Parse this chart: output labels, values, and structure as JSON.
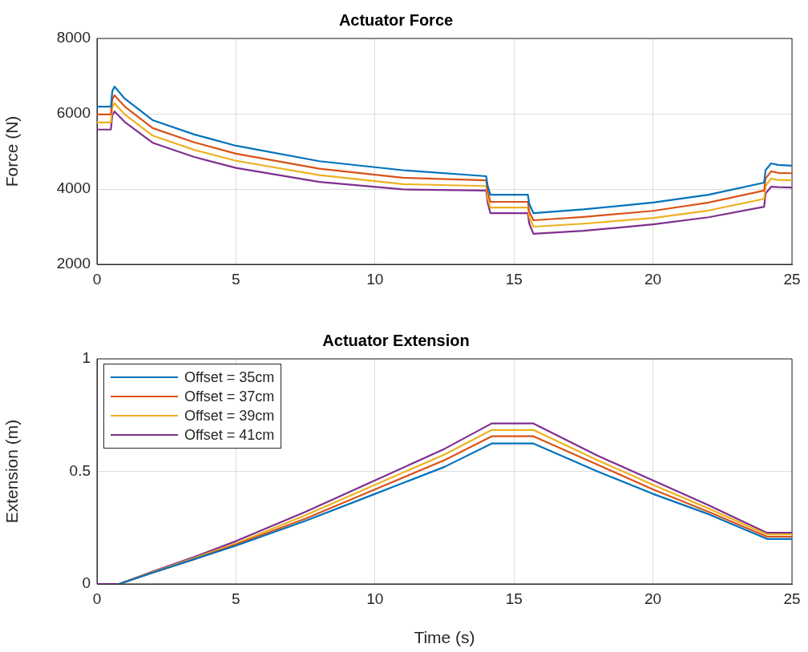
{
  "chart_data": [
    {
      "type": "line",
      "title": "Actuator Force",
      "ylabel": "Force (N)",
      "x": [
        0,
        0.5,
        0.55,
        0.63,
        1,
        2,
        3.5,
        5,
        8,
        11,
        14,
        14.05,
        14.15,
        15.5,
        15.55,
        15.7,
        17.5,
        20,
        22,
        24,
        24.05,
        24.25,
        24.5,
        25
      ],
      "series": [
        {
          "color": "#0072bd",
          "values": [
            6190,
            6190,
            6600,
            6720,
            6400,
            5830,
            5450,
            5150,
            4740,
            4500,
            4340,
            4100,
            3850,
            3850,
            3600,
            3360,
            3460,
            3640,
            3850,
            4170,
            4500,
            4680,
            4640,
            4620
          ]
        },
        {
          "color": "#d95319",
          "values": [
            5980,
            5980,
            6380,
            6490,
            6190,
            5620,
            5240,
            4940,
            4540,
            4300,
            4230,
            3950,
            3660,
            3660,
            3400,
            3170,
            3260,
            3420,
            3640,
            3960,
            4280,
            4470,
            4430,
            4420
          ]
        },
        {
          "color": "#edb120",
          "values": [
            5770,
            5770,
            6180,
            6280,
            5980,
            5420,
            5040,
            4750,
            4370,
            4130,
            4080,
            3780,
            3510,
            3510,
            3250,
            3000,
            3080,
            3230,
            3430,
            3740,
            4080,
            4280,
            4240,
            4230
          ]
        },
        {
          "color": "#7e2f8e",
          "values": [
            5580,
            5580,
            5960,
            6060,
            5780,
            5230,
            4850,
            4560,
            4190,
            3990,
            3960,
            3650,
            3360,
            3360,
            3080,
            2810,
            2890,
            3060,
            3250,
            3530,
            3880,
            4060,
            4050,
            4040
          ]
        }
      ],
      "xlim": [
        0,
        25
      ],
      "xticks": [
        0,
        5,
        10,
        15,
        20,
        25
      ],
      "ylim": [
        2000,
        8000
      ],
      "yticks": [
        2000,
        4000,
        6000,
        8000
      ],
      "grid": true,
      "marker": "none",
      "line_style": "solid"
    },
    {
      "type": "line",
      "title": "Actuator Extension",
      "xlabel": "Time (s)",
      "ylabel": "Extension (m)",
      "x": [
        0,
        0.8,
        2,
        3.5,
        5,
        7.5,
        10,
        12.5,
        14.2,
        15.7,
        18,
        20,
        22,
        24.1,
        25
      ],
      "series": [
        {
          "name": "Offset = 35cm",
          "color": "#0072bd",
          "values": [
            null,
            0,
            0.05,
            0.11,
            0.17,
            0.28,
            0.4,
            0.52,
            0.624,
            0.624,
            0.5,
            0.4,
            0.31,
            0.2,
            0.2
          ]
        },
        {
          "name": "Offset = 37cm",
          "color": "#d95319",
          "values": [
            null,
            0,
            0.05,
            0.11,
            0.175,
            0.29,
            0.42,
            0.55,
            0.656,
            0.656,
            0.53,
            0.42,
            0.32,
            0.21,
            0.21
          ]
        },
        {
          "name": "Offset = 39cm",
          "color": "#edb120",
          "values": [
            null,
            0,
            0.052,
            0.115,
            0.18,
            0.305,
            0.44,
            0.575,
            0.684,
            0.684,
            0.55,
            0.44,
            0.335,
            0.22,
            0.22
          ]
        },
        {
          "name": "Offset = 41cm",
          "color": "#7e2f8e",
          "values": [
            0,
            0,
            0.055,
            0.12,
            0.19,
            0.32,
            0.46,
            0.6,
            0.713,
            0.713,
            0.57,
            0.46,
            0.35,
            0.227,
            0.227
          ]
        }
      ],
      "xlim": [
        0,
        25
      ],
      "xticks": [
        0,
        5,
        10,
        15,
        20,
        25
      ],
      "ylim": [
        0,
        1
      ],
      "yticks": [
        0,
        0.5,
        1
      ],
      "grid": true,
      "legend": "top left",
      "marker": "none",
      "line_style": "solid"
    }
  ]
}
